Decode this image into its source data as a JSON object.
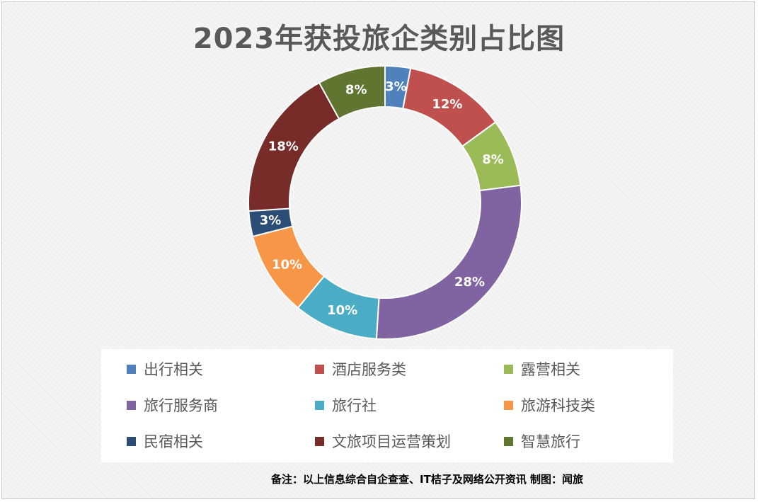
{
  "chart_data": {
    "type": "pie",
    "subtype": "donut",
    "title": "2023年获投旅企类别占比图",
    "slices": [
      {
        "name": "出行相关",
        "value": 3,
        "label": "3%",
        "color": "#4f81bd"
      },
      {
        "name": "酒店服务类",
        "value": 12,
        "label": "12%",
        "color": "#c0504d"
      },
      {
        "name": "露营相关",
        "value": 8,
        "label": "8%",
        "color": "#9bbb59"
      },
      {
        "name": "旅行服务商",
        "value": 28,
        "label": "28%",
        "color": "#8064a2"
      },
      {
        "name": "旅行社",
        "value": 10,
        "label": "10%",
        "color": "#4bacc6"
      },
      {
        "name": "旅游科技类",
        "value": 10,
        "label": "10%",
        "color": "#f79646"
      },
      {
        "name": "民宿相关",
        "value": 3,
        "label": "3%",
        "color": "#2c4d75"
      },
      {
        "name": "文旅项目运营策划",
        "value": 18,
        "label": "18%",
        "color": "#772c2a"
      },
      {
        "name": "智慧旅行",
        "value": 8,
        "label": "8%",
        "color": "#5f7530"
      }
    ],
    "legend_position": "bottom"
  },
  "footnote": "备注：以上信息综合自企查查、IT桔子及网络公开资讯  制图：闻旅"
}
